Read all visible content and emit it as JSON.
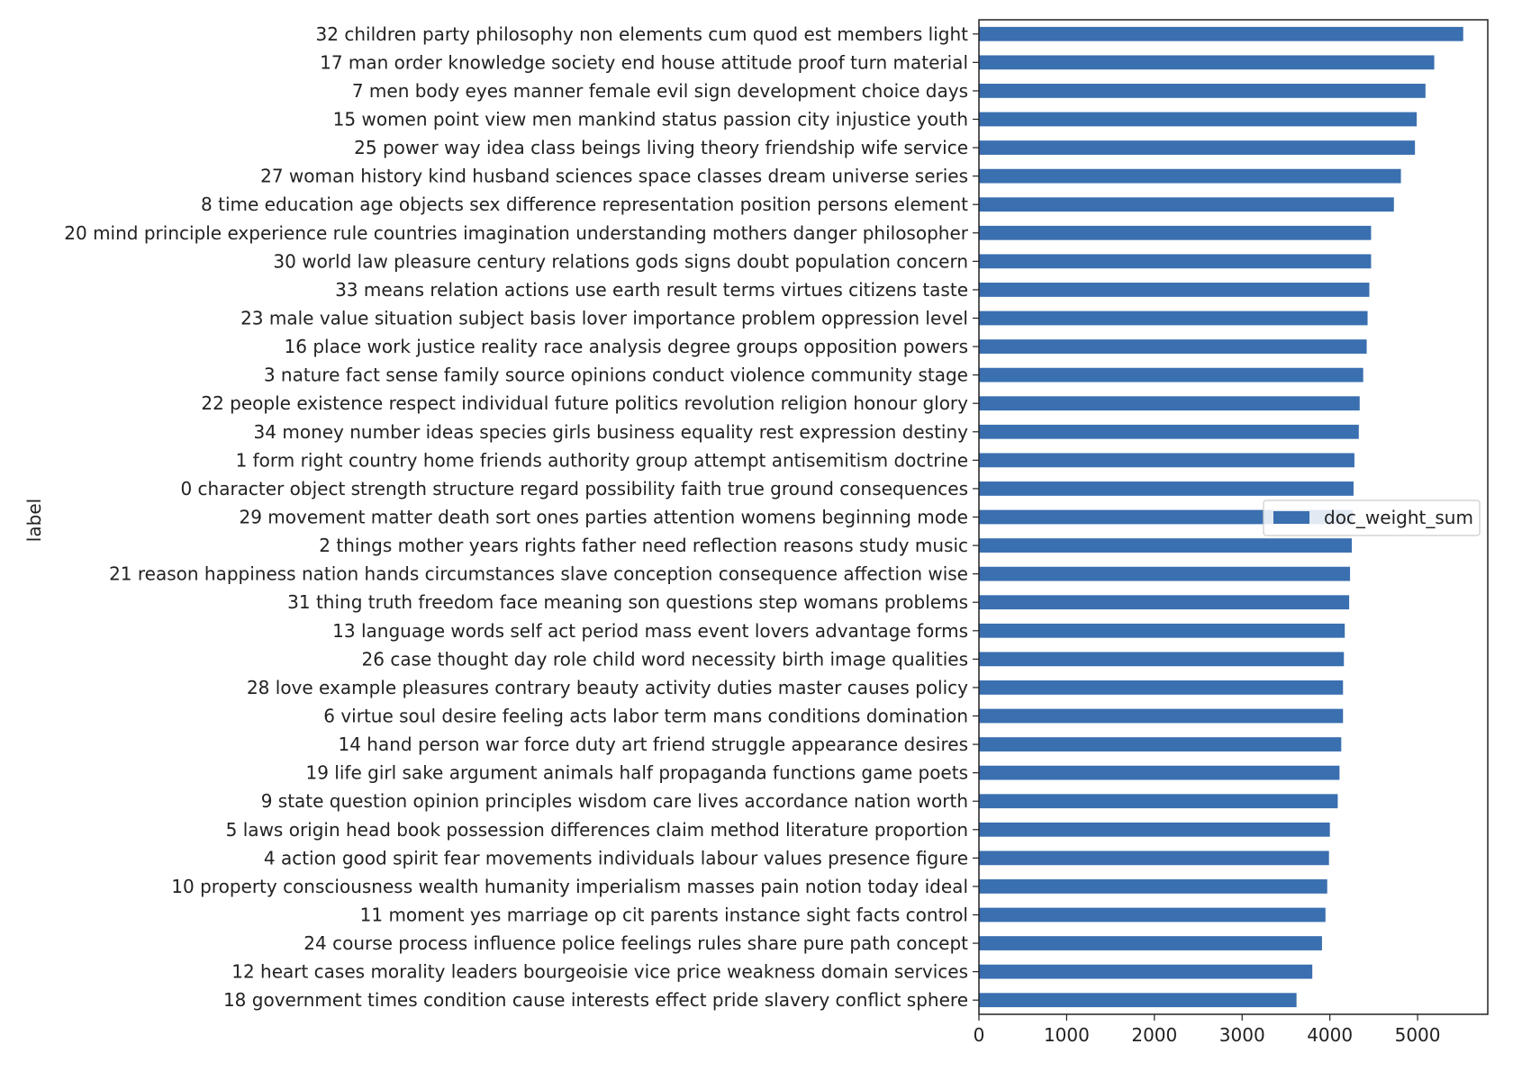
{
  "chart_data": {
    "type": "bar",
    "orientation": "horizontal",
    "ylabel": "label",
    "xlabel": "",
    "xlim": [
      0,
      5800
    ],
    "xticks": [
      0,
      1000,
      2000,
      3000,
      4000,
      5000
    ],
    "grid": false,
    "legend_position": "right-center",
    "bar_color": "#3a6fb0",
    "categories": [
      "32 children party philosophy non elements cum quod est members light",
      "17 man order knowledge society end house attitude proof turn material",
      "7 men body eyes manner female evil sign development choice days",
      "15 women point view men mankind status passion city injustice youth",
      "25 power way idea class beings living theory friendship wife service",
      "27 woman history kind husband sciences space classes dream universe series",
      "8 time education age objects sex difference representation position persons element",
      "20 mind principle experience rule countries imagination understanding mothers danger philosopher",
      "30 world law pleasure century relations gods signs doubt population concern",
      "33 means relation actions use earth result terms virtues citizens taste",
      "23 male value situation subject basis lover importance problem oppression level",
      "16 place work justice reality race analysis degree groups opposition powers",
      "3 nature fact sense family source opinions conduct violence community stage",
      "22 people existence respect individual future politics revolution religion honour glory",
      "34 money number ideas species girls business equality rest expression destiny",
      "1 form right country home friends authority group attempt antisemitism doctrine",
      "0 character object strength structure regard possibility faith true ground consequences",
      "29 movement matter death sort ones parties attention womens beginning mode",
      "2 things mother years rights father need reflection reasons study music",
      "21 reason happiness nation hands circumstances slave conception consequence affection wise",
      "31 thing truth freedom face meaning son questions step womans problems",
      "13 language words self act period mass event lovers advantage forms",
      "26 case thought day role child word necessity birth image qualities",
      "28 love example pleasures contrary beauty activity duties master causes policy",
      "6 virtue soul desire feeling acts labor term mans conditions domination",
      "14 hand person war force duty art friend struggle appearance desires",
      "19 life girl sake argument animals half propaganda functions game poets",
      "9 state question opinion principles wisdom care lives accordance nation worth",
      "5 laws origin head book possession differences claim method literature proportion",
      "4 action good spirit fear movements individuals labour values presence figure",
      "10 property consciousness wealth humanity imperialism masses pain notion today ideal",
      "11 moment yes marriage op cit parents instance sight facts control",
      "24 course process influence police feelings rules share pure path concept",
      "12 heart cases morality leaders bourgeoisie vice price weakness domain services",
      "18 government times condition cause interests effect pride slavery conflict sphere"
    ],
    "series": [
      {
        "name": "doc_weight_sum",
        "values": [
          5520,
          5190,
          5090,
          4990,
          4970,
          4810,
          4730,
          4470,
          4470,
          4450,
          4430,
          4420,
          4380,
          4340,
          4330,
          4280,
          4270,
          4260,
          4250,
          4230,
          4220,
          4170,
          4160,
          4150,
          4150,
          4130,
          4110,
          4090,
          4000,
          3990,
          3970,
          3950,
          3910,
          3800,
          3620
        ]
      }
    ]
  }
}
